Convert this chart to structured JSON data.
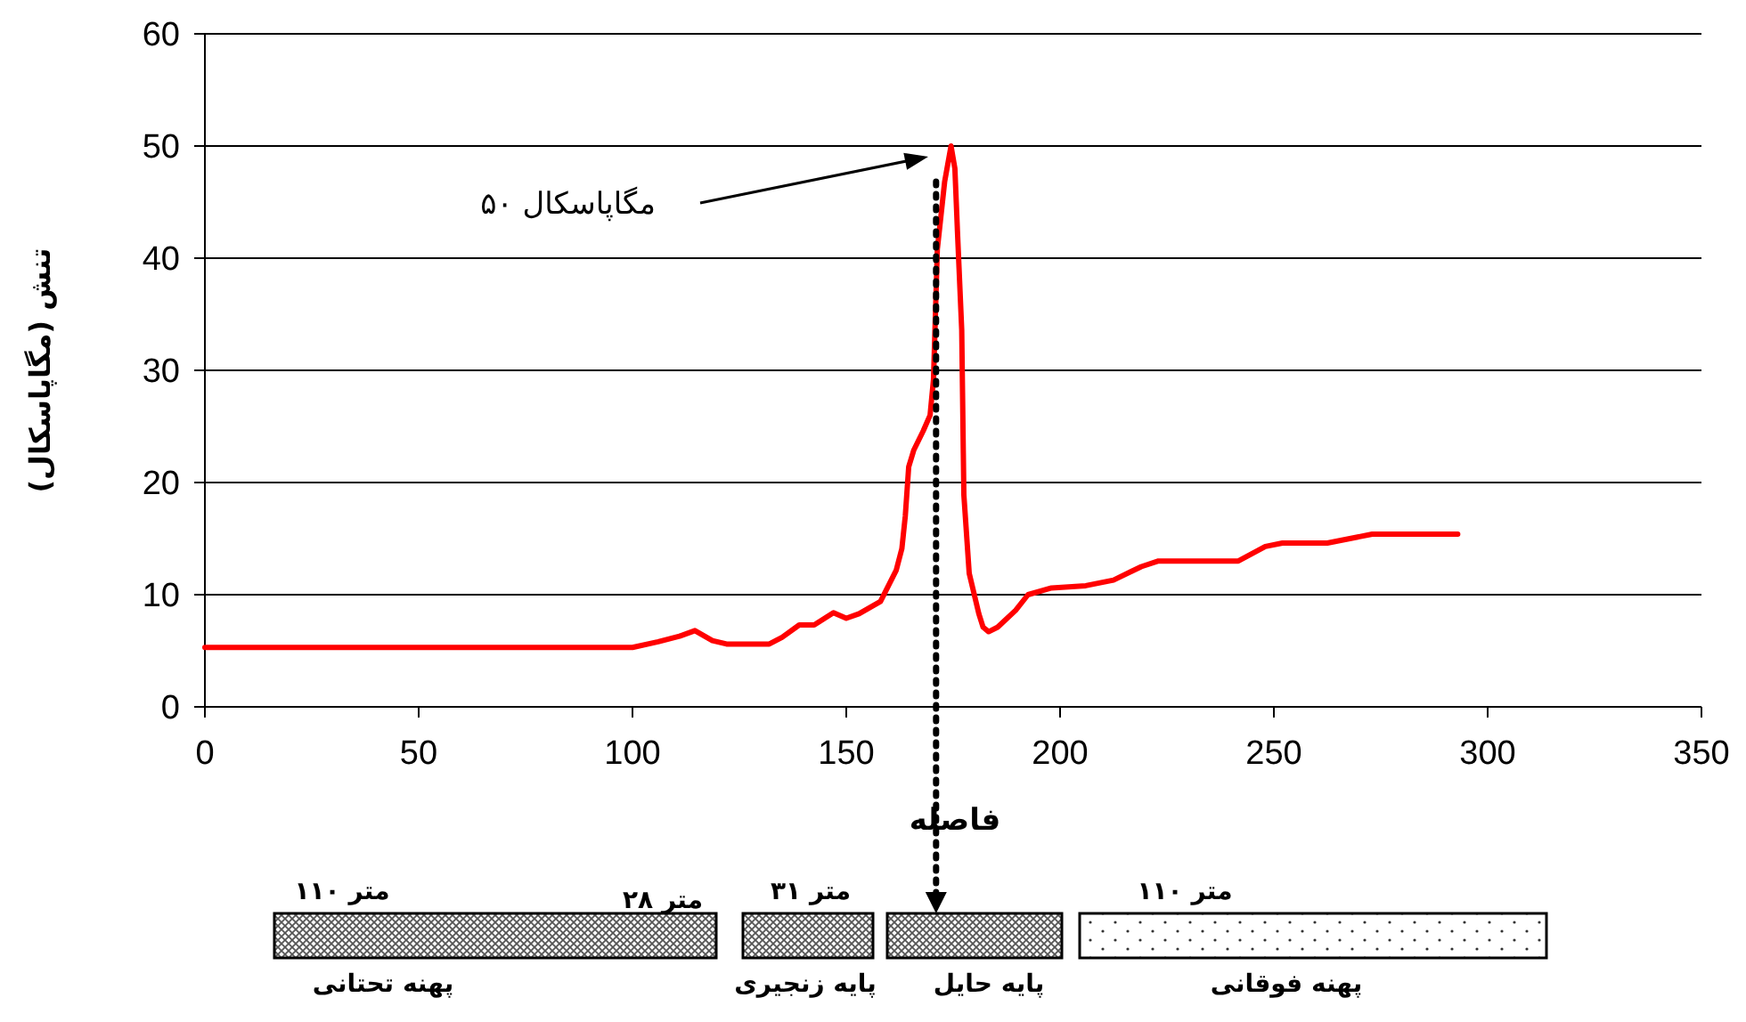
{
  "chart_data": {
    "type": "line",
    "xlabel": "فاصله",
    "ylabel": "تنش (مگاپاسکال)",
    "xlim": [
      0,
      350
    ],
    "xticks": [
      0,
      50,
      100,
      150,
      200,
      250,
      300,
      350
    ],
    "ylim": [
      0,
      60
    ],
    "yticks": [
      0,
      10,
      20,
      30,
      40,
      50,
      60
    ],
    "grid": "y",
    "marker": "none",
    "line_style": "solid",
    "series": [
      {
        "color": "#ff0000",
        "x": [
          0,
          100,
          106,
          111,
          114.6,
          118.7,
          122,
          132,
          135,
          139,
          142.5,
          147,
          150,
          153,
          158,
          161.7,
          163,
          163.8,
          164.6,
          165.8,
          168,
          169.6,
          170.4,
          171.3,
          173,
          174.5,
          175.4,
          176,
          177,
          177.5,
          178.75,
          181,
          182,
          183.3,
          185.4,
          189.6,
          192.5,
          198,
          206,
          212.5,
          219,
          223,
          241.7,
          248,
          252,
          262.5,
          273,
          293
        ],
        "values": [
          5.3,
          5.3,
          5.8,
          6.3,
          6.8,
          5.9,
          5.6,
          5.6,
          6.2,
          7.3,
          7.3,
          8.4,
          7.9,
          8.3,
          9.4,
          12.2,
          14.1,
          17,
          21.4,
          22.9,
          24.6,
          26,
          29.2,
          40.8,
          46.8,
          50,
          48,
          42.4,
          33.6,
          18.9,
          11.9,
          8.3,
          7.1,
          6.7,
          7.1,
          8.6,
          10,
          10.6,
          10.8,
          11.3,
          12.5,
          13,
          13,
          14.3,
          14.6,
          14.6,
          15.4,
          15.4
        ]
      }
    ],
    "ref_lines": [
      {
        "axis": "x",
        "value": 171,
        "color": "#000000",
        "line_style": "dotted"
      }
    ],
    "annotations": [
      "۵۰ مگاپاسکال",
      "۱۱۰ متر",
      "۲۸ متر",
      "۳۱ متر",
      "۱۱۰ متر",
      "پهنه تحتانی",
      "پایه زنجیری",
      "پایه حایل",
      "پهنه فوقانی"
    ]
  }
}
